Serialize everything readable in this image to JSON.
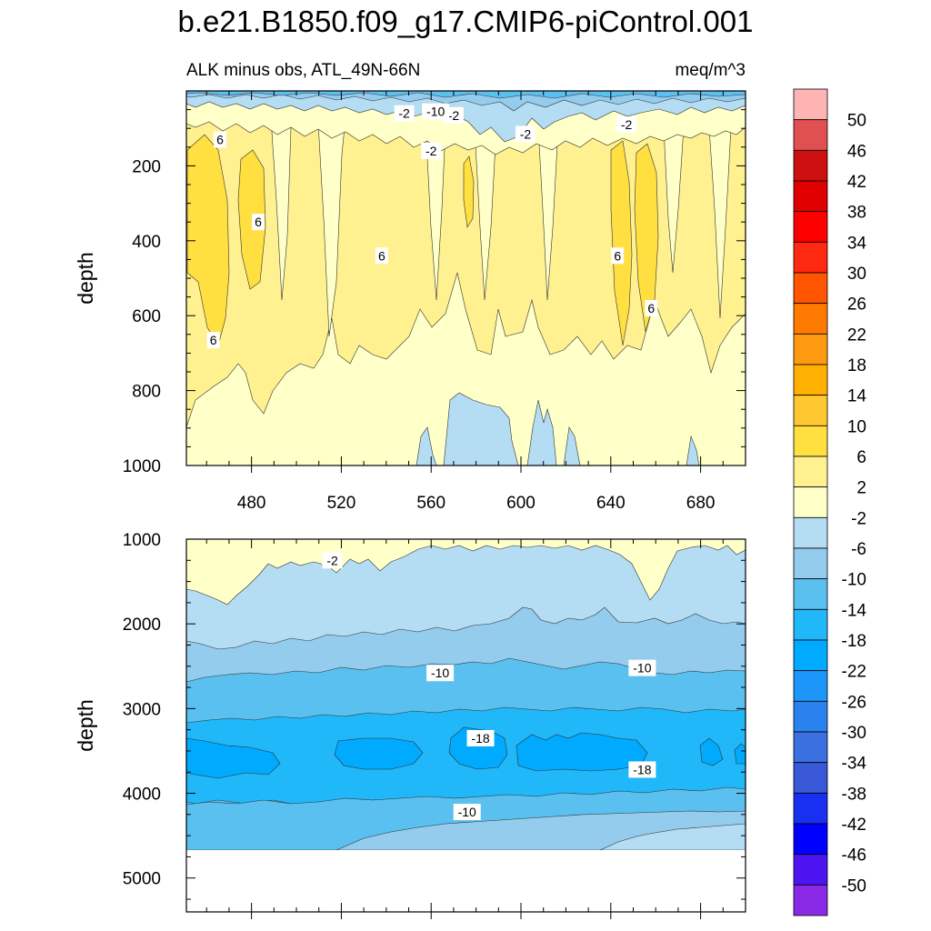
{
  "figure": {
    "title": "b.e21.B1850.f09_g17.CMIP6-piControl.001",
    "subtitle_left": "ALK minus obs, ATL_49N-66N",
    "subtitle_right": "meq/m^3"
  },
  "chart_data": {
    "type": "heatmap",
    "title": "b.e21.B1850.f09_g17.CMIP6-piControl.001",
    "subtitle": "ALK minus obs, ATL_49N-66N",
    "units": "meq/m^3",
    "x": {
      "range": [
        451,
        700
      ],
      "ticks": [
        480,
        520,
        560,
        600,
        640,
        680
      ],
      "label": ""
    },
    "panels": [
      {
        "name": "upper",
        "ylabel": "depth",
        "ylim": [
          0,
          1000
        ],
        "yticks": [
          200,
          400,
          600,
          800,
          1000
        ],
        "contour_labels": [
          {
            "text": "-2",
            "x": 570,
            "y": 65
          },
          {
            "text": "-2",
            "x": 548,
            "y": 60
          },
          {
            "text": "-10",
            "x": 562,
            "y": 55
          },
          {
            "text": "-2",
            "x": 560,
            "y": 160
          },
          {
            "text": "-2",
            "x": 602,
            "y": 115
          },
          {
            "text": "-2",
            "x": 647,
            "y": 90
          },
          {
            "text": "6",
            "x": 466,
            "y": 130
          },
          {
            "text": "6",
            "x": 483,
            "y": 350
          },
          {
            "text": "6",
            "x": 538,
            "y": 440
          },
          {
            "text": "6",
            "x": 643,
            "y": 440
          },
          {
            "text": "6",
            "x": 658,
            "y": 580
          },
          {
            "text": "6",
            "x": 463,
            "y": 665
          }
        ]
      },
      {
        "name": "lower",
        "ylabel": "depth",
        "ylim": [
          1000,
          5400
        ],
        "yticks": [
          1000,
          2000,
          3000,
          4000,
          5000
        ],
        "data_bottom": 4600,
        "contour_labels": [
          {
            "text": "-2",
            "x": 516,
            "y": 1250
          },
          {
            "text": "-10",
            "x": 564,
            "y": 2580
          },
          {
            "text": "-10",
            "x": 654,
            "y": 2520
          },
          {
            "text": "-18",
            "x": 582,
            "y": 3350
          },
          {
            "text": "-18",
            "x": 654,
            "y": 3720
          },
          {
            "text": "-10",
            "x": 576,
            "y": 4220
          }
        ]
      }
    ],
    "colorbar": {
      "levels": [
        50,
        46,
        42,
        38,
        34,
        30,
        26,
        22,
        18,
        14,
        10,
        6,
        2,
        -2,
        -6,
        -10,
        -14,
        -18,
        -22,
        -26,
        -30,
        -34,
        -38,
        -42,
        -46,
        -50
      ],
      "colors": [
        "#ffb4b4",
        "#e05050",
        "#cc1010",
        "#e00000",
        "#ff0000",
        "#ff2810",
        "#ff5500",
        "#ff7a00",
        "#ff9a10",
        "#ffb000",
        "#ffc830",
        "#ffe040",
        "#fff090",
        "#ffffc8",
        "#b4dcf2",
        "#94ccee",
        "#5ac0f0",
        "#20b8f8",
        "#00aaff",
        "#1c96f8",
        "#2a82ee",
        "#3a70e0",
        "#3858d8",
        "#1a30f0",
        "#0000ff",
        "#4c14f0",
        "#8a2ae6"
      ]
    }
  }
}
